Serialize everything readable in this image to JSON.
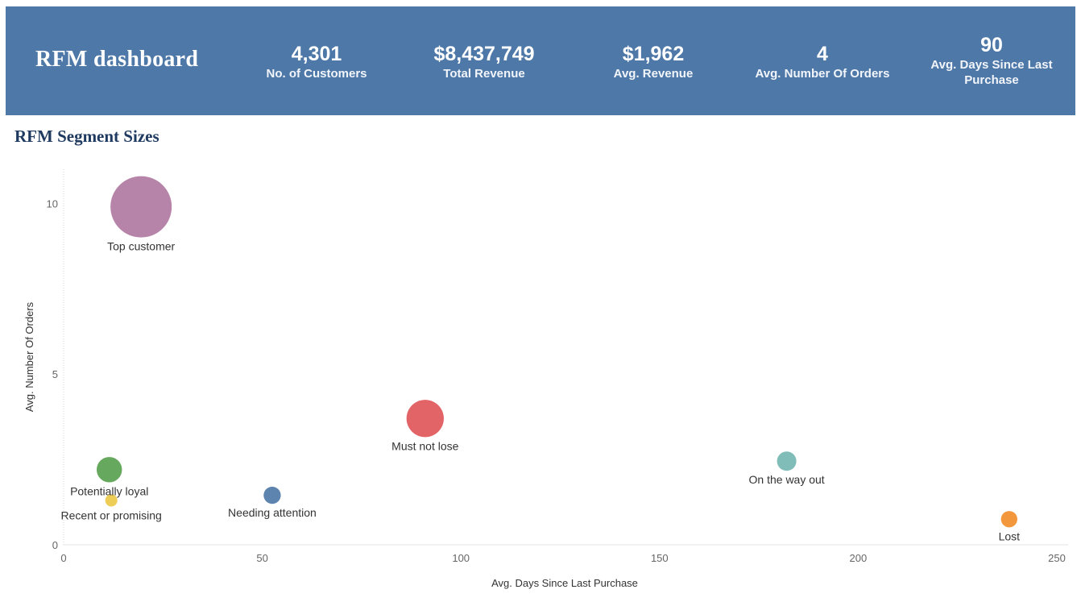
{
  "header": {
    "title": "RFM dashboard",
    "kpis": [
      {
        "value": "4,301",
        "label": "No. of Customers"
      },
      {
        "value": "$8,437,749",
        "label": "Total Revenue"
      },
      {
        "value": "$1,962",
        "label": "Avg. Revenue"
      },
      {
        "value": "4",
        "label": "Avg. Number Of Orders"
      },
      {
        "value": "90",
        "label_line1": "Avg. Days Since Last",
        "label_line2": "Purchase"
      }
    ]
  },
  "section": {
    "title": "RFM Segment Sizes"
  },
  "colors": {
    "header_bg": "#4e78a8",
    "Top customer": "#b07aa1",
    "Must not lose": "#e15759",
    "Potentially loyal": "#59a14f",
    "Recent or promising": "#edc948",
    "Needing attention": "#4e79a7",
    "On the way out": "#76b7b2",
    "Lost": "#f28e2b"
  },
  "chart_data": {
    "type": "scatter",
    "title": "RFM Segment Sizes",
    "xlabel": "Avg. Days Since Last Purchase",
    "ylabel": "Avg. Number Of Orders",
    "xlim": [
      0,
      250
    ],
    "ylim": [
      0,
      11
    ],
    "xticks": [
      0,
      50,
      100,
      150,
      200,
      250
    ],
    "yticks": [
      0,
      5,
      10
    ],
    "grid": false,
    "legend": "none",
    "points": [
      {
        "label": "Top customer",
        "x": 19.5,
        "y": 9.9,
        "size": 1400,
        "color": "#b07aa1",
        "label_pos": "below"
      },
      {
        "label": "Must not lose",
        "x": 91,
        "y": 3.7,
        "size": 520,
        "color": "#e15759",
        "label_pos": "below"
      },
      {
        "label": "Potentially loyal",
        "x": 11.5,
        "y": 2.2,
        "size": 240,
        "color": "#59a14f",
        "label_pos": "below"
      },
      {
        "label": "Recent or promising",
        "x": 12,
        "y": 1.3,
        "size": 55,
        "color": "#edc948",
        "label_pos": "below"
      },
      {
        "label": "Needing attention",
        "x": 52.5,
        "y": 1.45,
        "size": 110,
        "color": "#4e79a7",
        "label_pos": "below"
      },
      {
        "label": "On the way out",
        "x": 182,
        "y": 2.45,
        "size": 140,
        "color": "#76b7b2",
        "label_pos": "below"
      },
      {
        "label": "Lost",
        "x": 238,
        "y": 0.75,
        "size": 100,
        "color": "#f28e2b",
        "label_pos": "below"
      }
    ]
  }
}
